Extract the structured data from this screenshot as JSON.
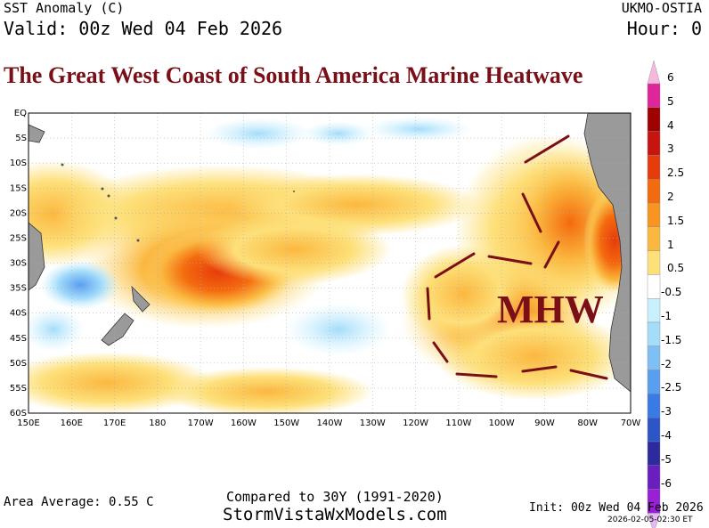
{
  "header": {
    "product": "SST Anomaly (C)",
    "valid": "Valid: 00z Wed 04 Feb 2026",
    "model": "UKMO-OSTIA",
    "hour": "Hour: 0"
  },
  "headline": "The Great West Coast of South America Marine Heatwave",
  "annotation": "MHW",
  "map": {
    "lat_labels": [
      "EQ",
      "5S",
      "10S",
      "15S",
      "20S",
      "25S",
      "30S",
      "35S",
      "40S",
      "45S",
      "50S",
      "55S",
      "60S"
    ],
    "lon_labels": [
      "150E",
      "160E",
      "170E",
      "180",
      "170W",
      "160W",
      "150W",
      "140W",
      "130W",
      "120W",
      "110W",
      "100W",
      "90W",
      "80W",
      "70W"
    ],
    "outline_color": "#7a0f18"
  },
  "colorbar": {
    "labels": [
      "6",
      "5",
      "4",
      "3",
      "2.5",
      "2",
      "1.5",
      "1",
      "0.5",
      "-0.5",
      "-1",
      "-1.5",
      "-2",
      "-2.5",
      "-3",
      "-4",
      "-5",
      "-6"
    ],
    "colors": [
      "#e0249a",
      "#a00000",
      "#c81410",
      "#e63c0c",
      "#f46a0e",
      "#f89420",
      "#fbb840",
      "#fde07a",
      "#ffffff",
      "#c8f0ff",
      "#a4dcfa",
      "#7ec0f4",
      "#5a9ef0",
      "#3a7ae6",
      "#2c56c8",
      "#2c2a9e",
      "#6a1ec0",
      "#9a20d8"
    ]
  },
  "footer": {
    "area_average": "Area Average: 0.55 C",
    "compared": "Compared to 30Y (1991-2020)",
    "site": "StormVistaWxModels.com",
    "init": "Init: 00z Wed 04 Feb 2026",
    "stamp": "2026-02-05-02:30 ET"
  }
}
